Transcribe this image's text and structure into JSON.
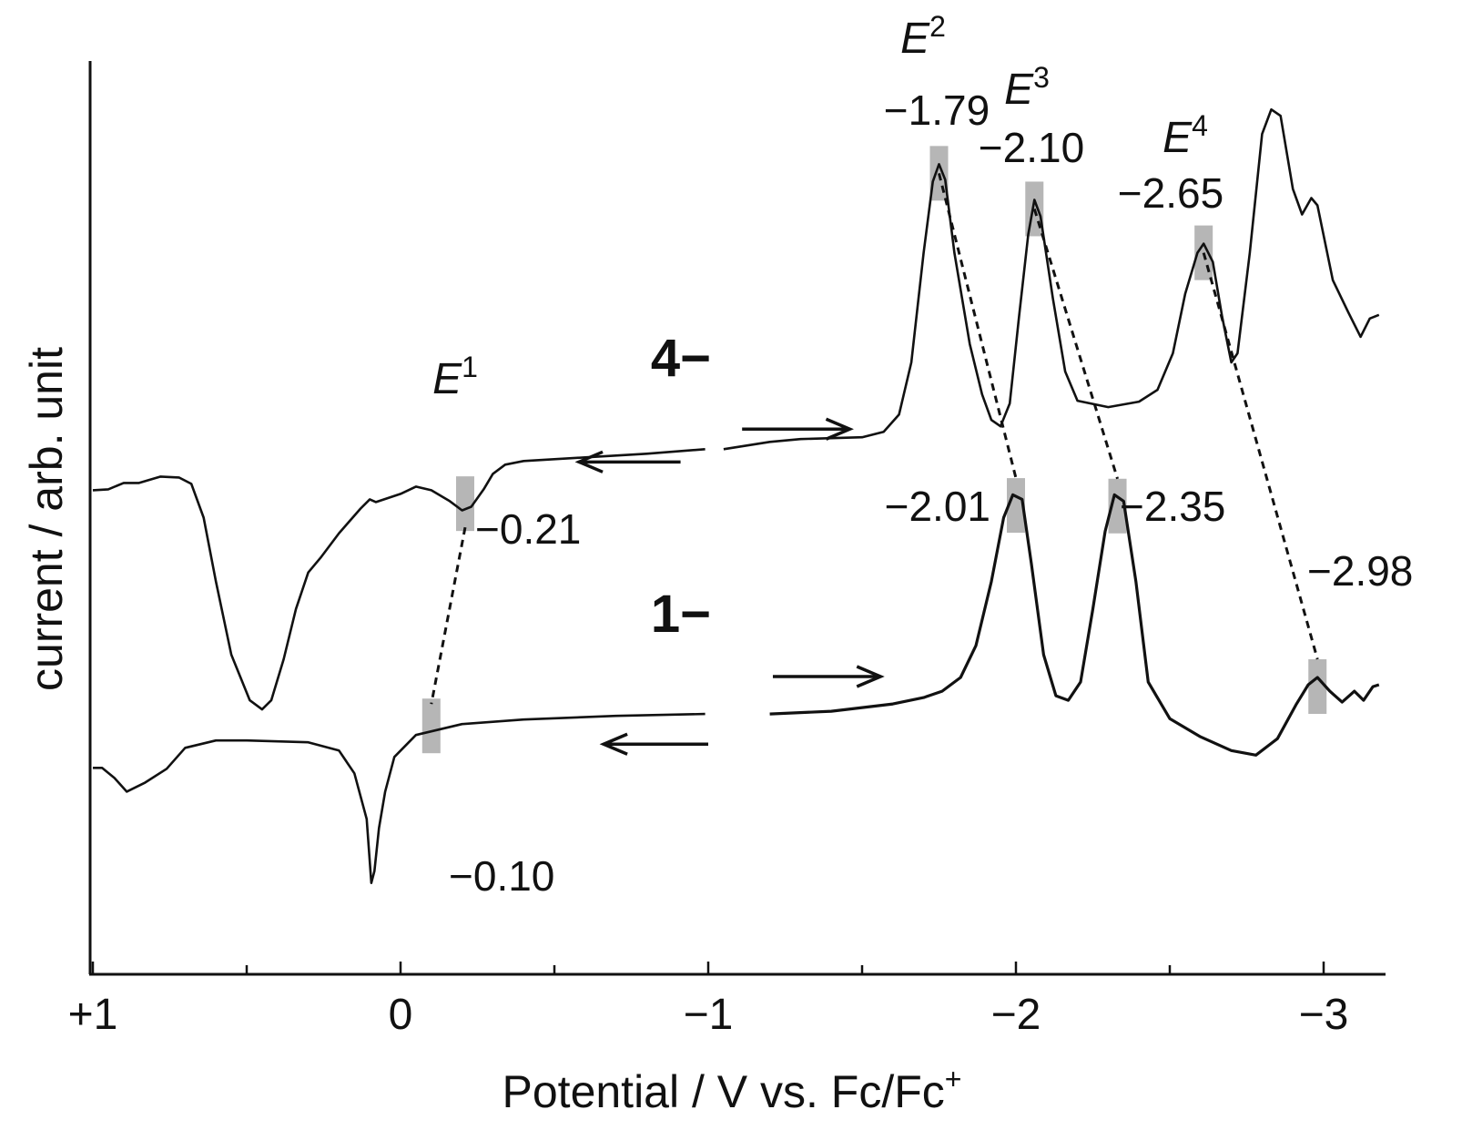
{
  "chart_data": {
    "type": "line",
    "x_axis": {
      "label": "Potential / V vs. Fc/Fc",
      "label_superscript": "+",
      "range": [
        1.0,
        -3.2
      ],
      "reversed": true,
      "ticks": [
        {
          "value": 1,
          "label": "+1"
        },
        {
          "value": 0,
          "label": "0"
        },
        {
          "value": -1,
          "label": "−1"
        },
        {
          "value": -2,
          "label": "−2"
        },
        {
          "value": -3,
          "label": "−3"
        }
      ],
      "minor_ticks": [
        0.5,
        -0.5,
        -1.5,
        -2.5
      ]
    },
    "y_axis": {
      "label": "current / arb. unit",
      "range": [
        0,
        1
      ]
    },
    "grid": false,
    "species_labels": [
      {
        "text": "4−",
        "x": -1.0,
        "y": 0.655
      },
      {
        "text": "1−",
        "x": -1.0,
        "y": 0.375
      }
    ],
    "scan_arrows": [
      {
        "series": "4− scan",
        "direction": "cathodic",
        "x_from": -1.11,
        "x_to": -1.46,
        "y": 0.597
      },
      {
        "series": "4− scan",
        "direction": "anodic",
        "x_from": -0.91,
        "x_to": -0.58,
        "y": 0.561
      },
      {
        "series": "1− scan",
        "direction": "cathodic",
        "x_from": -1.21,
        "x_to": -1.56,
        "y": 0.326
      },
      {
        "series": "1− scan",
        "direction": "anodic",
        "x_from": -1.0,
        "x_to": -0.66,
        "y": 0.252
      }
    ],
    "series": [
      {
        "name": "4− scan",
        "segment": "cathodic",
        "points": [
          [
            -1.05,
            0.575
          ],
          [
            -1.2,
            0.583
          ],
          [
            -1.3,
            0.586
          ],
          [
            -1.4,
            0.587
          ],
          [
            -1.5,
            0.588
          ],
          [
            -1.57,
            0.594
          ],
          [
            -1.62,
            0.613
          ],
          [
            -1.66,
            0.67
          ],
          [
            -1.7,
            0.79
          ],
          [
            -1.73,
            0.868
          ],
          [
            -1.75,
            0.887
          ],
          [
            -1.77,
            0.87
          ],
          [
            -1.8,
            0.79
          ],
          [
            -1.85,
            0.69
          ],
          [
            -1.89,
            0.635
          ],
          [
            -1.92,
            0.607
          ],
          [
            -1.95,
            0.6
          ],
          [
            -1.98,
            0.625
          ],
          [
            -2.01,
            0.72
          ],
          [
            -2.04,
            0.81
          ],
          [
            -2.06,
            0.848
          ],
          [
            -2.08,
            0.83
          ],
          [
            -2.12,
            0.74
          ],
          [
            -2.16,
            0.66
          ],
          [
            -2.2,
            0.628
          ],
          [
            -2.3,
            0.621
          ],
          [
            -2.4,
            0.627
          ],
          [
            -2.46,
            0.64
          ],
          [
            -2.51,
            0.68
          ],
          [
            -2.55,
            0.745
          ],
          [
            -2.59,
            0.79
          ],
          [
            -2.61,
            0.8
          ],
          [
            -2.64,
            0.78
          ],
          [
            -2.67,
            0.72
          ],
          [
            -2.7,
            0.67
          ],
          [
            -2.72,
            0.68
          ],
          [
            -2.76,
            0.79
          ],
          [
            -2.8,
            0.92
          ],
          [
            -2.83,
            0.947
          ],
          [
            -2.86,
            0.94
          ],
          [
            -2.9,
            0.86
          ],
          [
            -2.93,
            0.832
          ],
          [
            -2.96,
            0.85
          ],
          [
            -2.98,
            0.842
          ],
          [
            -3.03,
            0.76
          ],
          [
            -3.08,
            0.725
          ],
          [
            -3.12,
            0.698
          ],
          [
            -3.15,
            0.718
          ],
          [
            -3.18,
            0.722
          ]
        ]
      },
      {
        "name": "4− scan",
        "segment": "anodic",
        "points": [
          [
            -0.99,
            0.575
          ],
          [
            -0.8,
            0.57
          ],
          [
            -0.6,
            0.566
          ],
          [
            -0.4,
            0.562
          ],
          [
            -0.34,
            0.558
          ],
          [
            -0.3,
            0.548
          ],
          [
            -0.27,
            0.531
          ],
          [
            -0.23,
            0.512
          ],
          [
            -0.2,
            0.508
          ],
          [
            -0.16,
            0.518
          ],
          [
            -0.1,
            0.53
          ],
          [
            -0.05,
            0.534
          ],
          [
            0.0,
            0.526
          ],
          [
            0.08,
            0.517
          ],
          [
            0.1,
            0.52
          ],
          [
            0.13,
            0.51
          ],
          [
            0.2,
            0.483
          ],
          [
            0.26,
            0.456
          ],
          [
            0.3,
            0.44
          ],
          [
            0.34,
            0.4
          ],
          [
            0.38,
            0.345
          ],
          [
            0.42,
            0.3
          ],
          [
            0.45,
            0.29
          ],
          [
            0.49,
            0.3
          ],
          [
            0.55,
            0.35
          ],
          [
            0.6,
            0.43
          ],
          [
            0.64,
            0.5
          ],
          [
            0.68,
            0.537
          ],
          [
            0.72,
            0.544
          ],
          [
            0.78,
            0.545
          ],
          [
            0.85,
            0.538
          ],
          [
            0.9,
            0.538
          ],
          [
            0.95,
            0.531
          ],
          [
            1.0,
            0.53
          ]
        ]
      },
      {
        "name": "1− scan",
        "segment": "cathodic",
        "points": [
          [
            -1.2,
            0.285
          ],
          [
            -1.4,
            0.288
          ],
          [
            -1.6,
            0.296
          ],
          [
            -1.7,
            0.303
          ],
          [
            -1.76,
            0.31
          ],
          [
            -1.82,
            0.325
          ],
          [
            -1.87,
            0.36
          ],
          [
            -1.92,
            0.43
          ],
          [
            -1.96,
            0.5
          ],
          [
            -1.99,
            0.525
          ],
          [
            -2.02,
            0.52
          ],
          [
            -2.05,
            0.45
          ],
          [
            -2.09,
            0.35
          ],
          [
            -2.13,
            0.305
          ],
          [
            -2.17,
            0.3
          ],
          [
            -2.21,
            0.32
          ],
          [
            -2.25,
            0.4
          ],
          [
            -2.29,
            0.485
          ],
          [
            -2.32,
            0.525
          ],
          [
            -2.35,
            0.518
          ],
          [
            -2.39,
            0.43
          ],
          [
            -2.43,
            0.32
          ],
          [
            -2.5,
            0.28
          ],
          [
            -2.6,
            0.26
          ],
          [
            -2.7,
            0.245
          ],
          [
            -2.78,
            0.24
          ],
          [
            -2.85,
            0.258
          ],
          [
            -2.91,
            0.295
          ],
          [
            -2.95,
            0.317
          ],
          [
            -2.98,
            0.325
          ],
          [
            -3.02,
            0.31
          ],
          [
            -3.06,
            0.298
          ],
          [
            -3.1,
            0.31
          ],
          [
            -3.13,
            0.3
          ],
          [
            -3.16,
            0.315
          ],
          [
            -3.18,
            0.317
          ]
        ]
      },
      {
        "name": "1− scan",
        "segment": "anodic",
        "points": [
          [
            -0.99,
            0.285
          ],
          [
            -0.7,
            0.283
          ],
          [
            -0.4,
            0.279
          ],
          [
            -0.2,
            0.274
          ],
          [
            -0.05,
            0.262
          ],
          [
            0.02,
            0.238
          ],
          [
            0.05,
            0.2
          ],
          [
            0.07,
            0.16
          ],
          [
            0.085,
            0.113
          ],
          [
            0.095,
            0.1
          ],
          [
            0.11,
            0.17
          ],
          [
            0.15,
            0.22
          ],
          [
            0.2,
            0.245
          ],
          [
            0.3,
            0.254
          ],
          [
            0.5,
            0.256
          ],
          [
            0.6,
            0.256
          ],
          [
            0.7,
            0.248
          ],
          [
            0.76,
            0.225
          ],
          [
            0.83,
            0.21
          ],
          [
            0.89,
            0.2
          ],
          [
            0.93,
            0.215
          ],
          [
            0.97,
            0.226
          ],
          [
            1.0,
            0.226
          ]
        ]
      }
    ],
    "peaks": [
      {
        "label": "E",
        "label_superscript": "1",
        "value": "−0.21",
        "x": -0.21,
        "series": "4− scan",
        "partner_x": -0.1
      },
      {
        "label": "",
        "label_superscript": "",
        "value": "−0.10",
        "x": -0.1,
        "series": "1− scan"
      },
      {
        "label": "E",
        "label_superscript": "2",
        "value": "−1.79",
        "x": -1.75,
        "series": "4− scan",
        "partner_x": -2.0
      },
      {
        "label": "E",
        "label_superscript": "3",
        "value": "−2.10",
        "x": -2.06,
        "series": "4− scan",
        "partner_x": -2.33
      },
      {
        "label": "E",
        "label_superscript": "4",
        "value": "−2.65",
        "x": -2.61,
        "series": "4− scan",
        "partner_x": -2.98
      },
      {
        "label": "",
        "label_superscript": "",
        "value": "−2.01",
        "x": -2.0,
        "series": "1− scan"
      },
      {
        "label": "",
        "label_superscript": "",
        "value": "−2.35",
        "x": -2.33,
        "series": "1− scan"
      },
      {
        "label": "",
        "label_superscript": "",
        "value": "−2.98",
        "x": -2.98,
        "series": "1− scan"
      }
    ]
  }
}
